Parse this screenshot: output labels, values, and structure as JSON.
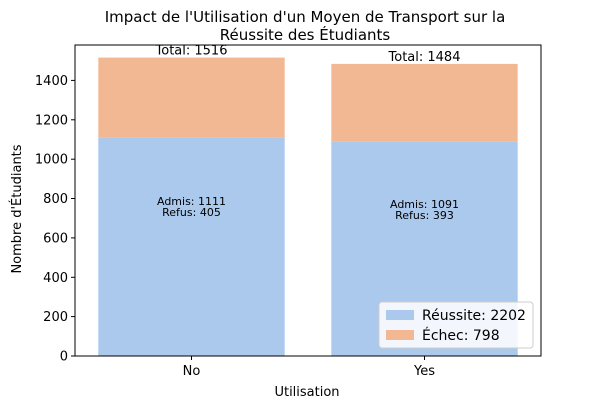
{
  "chart_data": {
    "type": "bar",
    "stacked": true,
    "title_lines": [
      "Impact de l'Utilisation d'un Moyen de Transport sur la",
      "Réussite des Étudiants"
    ],
    "xlabel": "Utilisation",
    "ylabel": "Nombre d'Étudiants",
    "categories": [
      "No",
      "Yes"
    ],
    "ylim": [
      0,
      1580
    ],
    "yticks": [
      0,
      200,
      400,
      600,
      800,
      1000,
      1200,
      1400
    ],
    "series": [
      {
        "name": "Réussite",
        "values": [
          1111,
          1091
        ],
        "color": "#abc9ed"
      },
      {
        "name": "Échec",
        "values": [
          405,
          393
        ],
        "color": "#f1b893"
      }
    ],
    "totals": [
      1516,
      1484
    ],
    "total_labels": [
      "Total: 1516",
      "Total: 1484"
    ],
    "bar_labels": [
      [
        "Admis: 1111",
        "Refus: 405"
      ],
      [
        "Admis: 1091",
        "Refus: 393"
      ]
    ],
    "legend": {
      "position": "lower-right",
      "entries": [
        "Réussite: 2202",
        "Échec: 798"
      ]
    },
    "grid": false
  }
}
